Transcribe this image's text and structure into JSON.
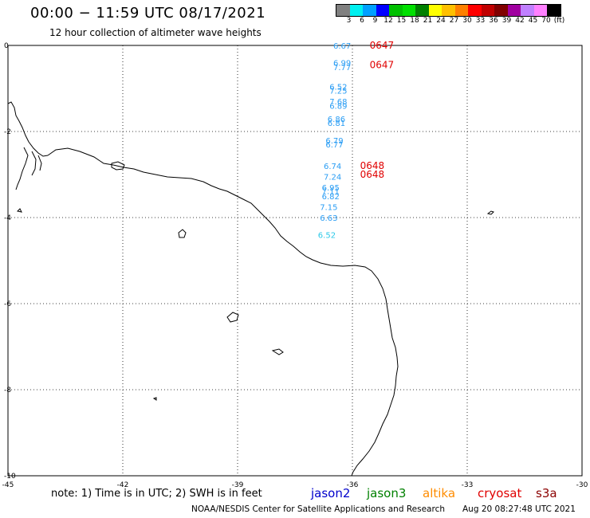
{
  "header": {
    "title": "00:00  −  11:59  UTC  08/17/2021",
    "subtitle": "12 hour collection of altimeter wave heights"
  },
  "colorbar": {
    "colors": [
      "#808080",
      "#00f0f0",
      "#00a0ff",
      "#0000ff",
      "#00c000",
      "#00e000",
      "#008000",
      "#ffff00",
      "#ffc000",
      "#ff8000",
      "#ff0000",
      "#c00000",
      "#800000",
      "#a000a0",
      "#c080ff",
      "#ff80ff",
      "#000000"
    ],
    "labels": [
      "3",
      "6",
      "9",
      "12",
      "15",
      "18",
      "21",
      "24",
      "27",
      "30",
      "33",
      "36",
      "39",
      "42",
      "45",
      "70",
      "(ft)"
    ]
  },
  "axes": {
    "x_ticks": [
      "-45",
      "-42",
      "-39",
      "-36",
      "-33",
      "-30"
    ],
    "y_ticks": [
      "0",
      "-2",
      "-4",
      "-6",
      "-8",
      "-10"
    ]
  },
  "observations": [
    {
      "text": "6.67",
      "color": "#2a9df4",
      "lon": -36.5,
      "lat": 0.0
    },
    {
      "text": "6.99",
      "color": "#2a9df4",
      "lon": -36.5,
      "lat": -0.4
    },
    {
      "text": "7.77",
      "color": "#2a9df4",
      "lon": -36.5,
      "lat": -0.5
    },
    {
      "text": "6.52",
      "color": "#2a9df4",
      "lon": -36.6,
      "lat": -0.95
    },
    {
      "text": "7.25",
      "color": "#2a9df4",
      "lon": -36.6,
      "lat": -1.05
    },
    {
      "text": "7.68",
      "color": "#2a9df4",
      "lon": -36.6,
      "lat": -1.3
    },
    {
      "text": "6.89",
      "color": "#2a9df4",
      "lon": -36.6,
      "lat": -1.4
    },
    {
      "text": "6.86",
      "color": "#2a9df4",
      "lon": -36.65,
      "lat": -1.7
    },
    {
      "text": "6.81",
      "color": "#2a9df4",
      "lon": -36.65,
      "lat": -1.8
    },
    {
      "text": "6.79",
      "color": "#2a9df4",
      "lon": -36.7,
      "lat": -2.2
    },
    {
      "text": "6.77",
      "color": "#2a9df4",
      "lon": -36.7,
      "lat": -2.3
    },
    {
      "text": "6.74",
      "color": "#2a9df4",
      "lon": -36.75,
      "lat": -2.8
    },
    {
      "text": "7.24",
      "color": "#2a9df4",
      "lon": -36.75,
      "lat": -3.05
    },
    {
      "text": "6.95",
      "color": "#2a9df4",
      "lon": -36.8,
      "lat": -3.3
    },
    {
      "text": "7.11",
      "color": "#2a9df4",
      "lon": -36.8,
      "lat": -3.38
    },
    {
      "text": "6.82",
      "color": "#2a9df4",
      "lon": -36.8,
      "lat": -3.5
    },
    {
      "text": "7.15",
      "color": "#2a9df4",
      "lon": -36.85,
      "lat": -3.75
    },
    {
      "text": "6.63",
      "color": "#2a9df4",
      "lon": -36.85,
      "lat": -4.0
    },
    {
      "text": "6.52",
      "color": "#2ac8e8",
      "lon": -36.9,
      "lat": -4.4
    },
    {
      "text": "0647",
      "color": "#e00000",
      "lon": -35.55,
      "lat": 0.0
    },
    {
      "text": "0647",
      "color": "#e00000",
      "lon": -35.55,
      "lat": -0.45
    },
    {
      "text": "0648",
      "color": "#e00000",
      "lon": -35.8,
      "lat": -2.8
    },
    {
      "text": "0648",
      "color": "#e00000",
      "lon": -35.8,
      "lat": -3.0
    }
  ],
  "legend": [
    {
      "label": "jason2",
      "color": "#0000cc"
    },
    {
      "label": "jason3",
      "color": "#008000"
    },
    {
      "label": "altika",
      "color": "#ff8c00"
    },
    {
      "label": "cryosat",
      "color": "#e00000"
    },
    {
      "label": "s3a",
      "color": "#8b0000"
    }
  ],
  "footer": {
    "note": "note:  1)  Time is in UTC;  2)  SWH is in feet",
    "credit": "NOAA/NESDIS Center for Satellite Applications and Research",
    "timestamp": "Aug 20 08:27:48 UTC 2021"
  }
}
